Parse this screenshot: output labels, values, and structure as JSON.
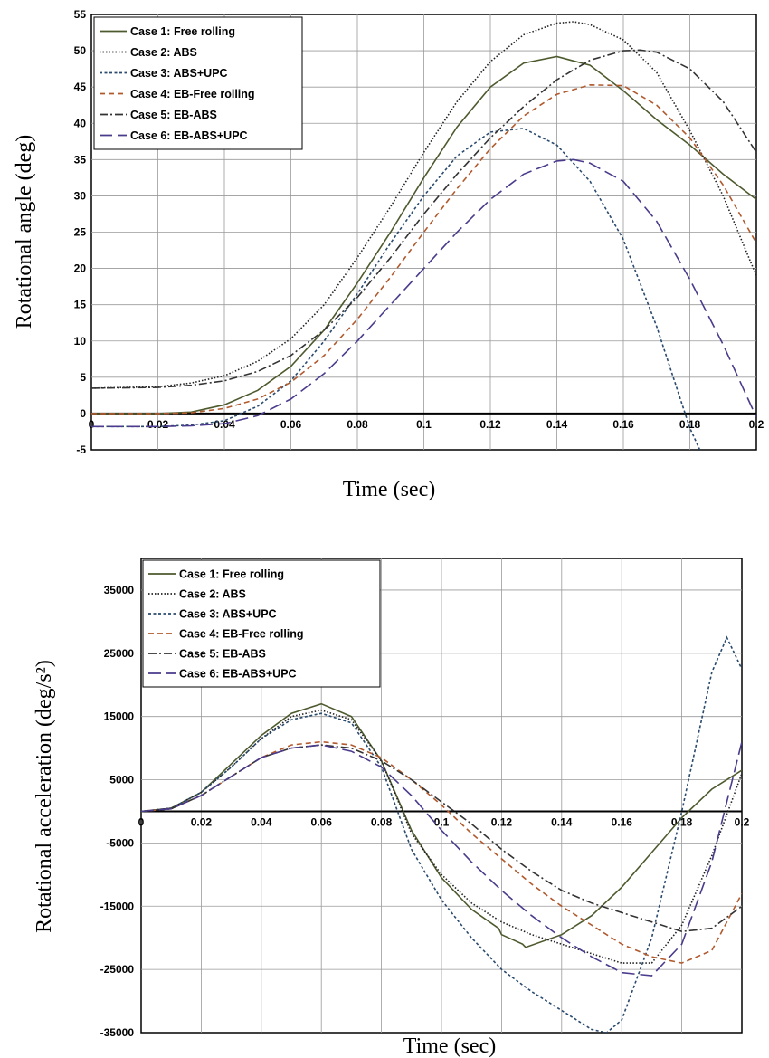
{
  "chart_data": [
    {
      "type": "line",
      "xlabel": "Time (sec)",
      "ylabel": "Rotational angle (deg)",
      "xlim": [
        0,
        0.2
      ],
      "ylim": [
        -5,
        55
      ],
      "x_ticks": [
        0,
        0.02,
        0.04,
        0.06,
        0.08,
        0.1,
        0.12,
        0.14,
        0.16,
        0.18,
        0.2
      ],
      "x_tick_labels": [
        "0",
        "0.02",
        "0.04",
        "0.06",
        "0.08",
        "0.1",
        "0.12",
        "0.14",
        "0.16",
        "0.18",
        "0.2"
      ],
      "y_ticks": [
        -5,
        0,
        5,
        10,
        15,
        20,
        25,
        30,
        35,
        40,
        45,
        50,
        55
      ],
      "y_tick_labels": [
        "-5",
        "0",
        "5",
        "10",
        "15",
        "20",
        "25",
        "30",
        "35",
        "40",
        "45",
        "50",
        "55"
      ],
      "grid": true,
      "legend": "top-left",
      "series": [
        {
          "name": "Case 1: Free rolling",
          "color": "#4d5a2e",
          "dash": "solid",
          "x": [
            0,
            0.02,
            0.03,
            0.04,
            0.05,
            0.06,
            0.07,
            0.08,
            0.09,
            0.1,
            0.11,
            0.12,
            0.13,
            0.14,
            0.15,
            0.16,
            0.17,
            0.18,
            0.19,
            0.2
          ],
          "y": [
            0,
            0,
            0.2,
            1.2,
            3.2,
            6.5,
            11.5,
            18,
            25,
            32.5,
            39.5,
            45,
            48.3,
            49.2,
            48,
            44.5,
            40.5,
            37,
            33,
            29.5
          ]
        },
        {
          "name": "Case 2: ABS",
          "color": "#222222",
          "dash": "dotted",
          "x": [
            0,
            0.02,
            0.03,
            0.04,
            0.05,
            0.06,
            0.07,
            0.08,
            0.09,
            0.1,
            0.11,
            0.12,
            0.13,
            0.14,
            0.145,
            0.15,
            0.16,
            0.17,
            0.18,
            0.19,
            0.2
          ],
          "y": [
            3.5,
            3.7,
            4.2,
            5.2,
            7.2,
            10.3,
            15,
            21.5,
            28.5,
            36,
            43,
            48.5,
            52.2,
            53.8,
            54,
            53.6,
            51.5,
            47,
            39,
            30,
            19
          ]
        },
        {
          "name": "Case 3: ABS+UPC",
          "color": "#2a4a6e",
          "dash": "shortdash",
          "x": [
            0,
            0.02,
            0.03,
            0.04,
            0.05,
            0.06,
            0.07,
            0.08,
            0.09,
            0.1,
            0.11,
            0.12,
            0.13,
            0.14,
            0.15,
            0.16,
            0.17,
            0.18,
            0.183
          ],
          "y": [
            -1.8,
            -1.8,
            -1.6,
            -1,
            1,
            4.5,
            10,
            16.5,
            23.5,
            30,
            35.5,
            38.8,
            39.3,
            37,
            32,
            24,
            12,
            -2,
            -5
          ]
        },
        {
          "name": "Case 4: EB-Free rolling",
          "color": "#b05a2e",
          "dash": "dashed",
          "x": [
            0,
            0.02,
            0.03,
            0.04,
            0.05,
            0.06,
            0.07,
            0.08,
            0.09,
            0.1,
            0.11,
            0.12,
            0.13,
            0.14,
            0.15,
            0.16,
            0.17,
            0.18,
            0.19,
            0.2
          ],
          "y": [
            0,
            0,
            0.1,
            0.7,
            2,
            4.3,
            8,
            13,
            18.8,
            25,
            31,
            36.5,
            41,
            44,
            45.3,
            45.2,
            42.5,
            38,
            31.5,
            23.5
          ]
        },
        {
          "name": "Case 5: EB-ABS",
          "color": "#333333",
          "dash": "dashdot",
          "x": [
            0,
            0.02,
            0.03,
            0.04,
            0.05,
            0.06,
            0.07,
            0.08,
            0.09,
            0.1,
            0.11,
            0.12,
            0.13,
            0.14,
            0.15,
            0.16,
            0.165,
            0.17,
            0.18,
            0.19,
            0.2
          ],
          "y": [
            3.5,
            3.6,
            3.9,
            4.5,
            5.8,
            8,
            11.5,
            16,
            21.5,
            27.5,
            33,
            38,
            42.3,
            46,
            48.7,
            50,
            50.1,
            49.8,
            47.5,
            43,
            36
          ]
        },
        {
          "name": "Case 6: EB-ABS+UPC",
          "color": "#4b3b8c",
          "dash": "longdash",
          "x": [
            0,
            0.02,
            0.03,
            0.04,
            0.05,
            0.06,
            0.07,
            0.08,
            0.09,
            0.1,
            0.11,
            0.12,
            0.13,
            0.14,
            0.145,
            0.15,
            0.16,
            0.17,
            0.18,
            0.19,
            0.2
          ],
          "y": [
            -1.8,
            -1.8,
            -1.7,
            -1.4,
            -0.3,
            2,
            5.5,
            10,
            15,
            20,
            25,
            29.5,
            33,
            34.8,
            35,
            34.5,
            32,
            26.5,
            18.5,
            9.5,
            -0.5
          ]
        }
      ]
    },
    {
      "type": "line",
      "xlabel": "Time (sec)",
      "ylabel": "Rotational acceleration (deg/s²)",
      "xlim": [
        0,
        0.2
      ],
      "ylim": [
        -35000,
        40000
      ],
      "x_ticks": [
        0,
        0.02,
        0.04,
        0.06,
        0.08,
        0.1,
        0.12,
        0.14,
        0.16,
        0.18,
        0.2
      ],
      "x_tick_labels": [
        "0",
        "0.02",
        "0.04",
        "0.06",
        "0.08",
        "0.1",
        "0.12",
        "0.14",
        "0.16",
        "0.18",
        "0.2"
      ],
      "y_ticks": [
        -35000,
        -25000,
        -15000,
        -5000,
        5000,
        15000,
        25000,
        35000
      ],
      "y_tick_labels": [
        "-35000",
        "-25000",
        "-15000",
        "-5000",
        "5000",
        "15000",
        "25000",
        "35000"
      ],
      "grid": true,
      "legend": "top-left",
      "series": [
        {
          "name": "Case 1: Free rolling",
          "color": "#4d5a2e",
          "dash": "solid",
          "x": [
            0,
            0.01,
            0.02,
            0.03,
            0.04,
            0.05,
            0.06,
            0.07,
            0.08,
            0.09,
            0.1,
            0.11,
            0.119,
            0.12,
            0.127,
            0.128,
            0.14,
            0.15,
            0.16,
            0.17,
            0.18,
            0.19,
            0.2
          ],
          "y": [
            0,
            500,
            3000,
            7500,
            12000,
            15500,
            17000,
            15000,
            8000,
            -3000,
            -10500,
            -15500,
            -18500,
            -19500,
            -21000,
            -21500,
            -19500,
            -16500,
            -12000,
            -6500,
            -1000,
            3500,
            6500
          ]
        },
        {
          "name": "Case 2: ABS",
          "color": "#222222",
          "dash": "dotted",
          "x": [
            0,
            0.01,
            0.02,
            0.03,
            0.04,
            0.05,
            0.06,
            0.07,
            0.08,
            0.09,
            0.1,
            0.11,
            0.12,
            0.13,
            0.14,
            0.15,
            0.16,
            0.17,
            0.18,
            0.19,
            0.2
          ],
          "y": [
            0,
            500,
            3000,
            7000,
            11500,
            15000,
            16000,
            14500,
            8000,
            -3500,
            -10000,
            -14500,
            -17500,
            -19500,
            -21000,
            -22500,
            -24000,
            -24000,
            -18000,
            -7000,
            6000
          ]
        },
        {
          "name": "Case 3: ABS+UPC",
          "color": "#2a4a6e",
          "dash": "shortdash",
          "x": [
            0,
            0.01,
            0.02,
            0.03,
            0.04,
            0.05,
            0.06,
            0.07,
            0.08,
            0.09,
            0.1,
            0.11,
            0.12,
            0.13,
            0.14,
            0.15,
            0.155,
            0.16,
            0.17,
            0.18,
            0.19,
            0.195,
            0.2
          ],
          "y": [
            0,
            500,
            3000,
            7000,
            11500,
            14500,
            15500,
            14000,
            7000,
            -6000,
            -14000,
            -20000,
            -25000,
            -28500,
            -31500,
            -34500,
            -35000,
            -33000,
            -20000,
            0,
            22000,
            27500,
            22500
          ]
        },
        {
          "name": "Case 4: EB-Free rolling",
          "color": "#b05a2e",
          "dash": "dashed",
          "x": [
            0,
            0.01,
            0.02,
            0.03,
            0.04,
            0.05,
            0.06,
            0.07,
            0.08,
            0.09,
            0.1,
            0.11,
            0.12,
            0.13,
            0.14,
            0.15,
            0.16,
            0.17,
            0.18,
            0.19,
            0.2
          ],
          "y": [
            0,
            400,
            2500,
            5500,
            8500,
            10500,
            11000,
            10500,
            8500,
            5000,
            1000,
            -3500,
            -7500,
            -11500,
            -15000,
            -18000,
            -21000,
            -23000,
            -24000,
            -22000,
            -13000
          ]
        },
        {
          "name": "Case 5: EB-ABS",
          "color": "#333333",
          "dash": "dashdot",
          "x": [
            0,
            0.01,
            0.02,
            0.03,
            0.04,
            0.05,
            0.06,
            0.07,
            0.08,
            0.09,
            0.1,
            0.11,
            0.12,
            0.13,
            0.14,
            0.15,
            0.16,
            0.17,
            0.18,
            0.19,
            0.2
          ],
          "y": [
            0,
            400,
            2500,
            5500,
            8500,
            10000,
            10500,
            10000,
            8000,
            5000,
            1500,
            -2000,
            -6000,
            -9500,
            -12500,
            -14500,
            -16000,
            -17500,
            -19000,
            -18500,
            -15000
          ]
        },
        {
          "name": "Case 6: EB-ABS+UPC",
          "color": "#4b3b8c",
          "dash": "longdash",
          "x": [
            0,
            0.01,
            0.02,
            0.03,
            0.04,
            0.05,
            0.06,
            0.07,
            0.08,
            0.09,
            0.1,
            0.11,
            0.12,
            0.13,
            0.14,
            0.15,
            0.16,
            0.17,
            0.18,
            0.19,
            0.2
          ],
          "y": [
            0,
            400,
            2500,
            5500,
            8500,
            10000,
            10500,
            9500,
            7000,
            2500,
            -3000,
            -8000,
            -12500,
            -16500,
            -20000,
            -23000,
            -25500,
            -26000,
            -21000,
            -8000,
            11000
          ]
        }
      ]
    }
  ]
}
